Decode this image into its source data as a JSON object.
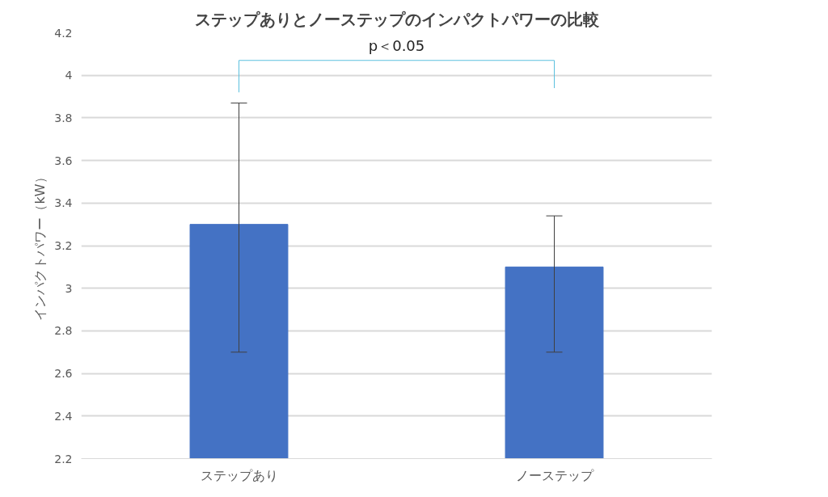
{
  "chart_data": {
    "type": "bar",
    "title": "ステップありとノーステップのインパクトパワーの比較",
    "ylabel": "インパクトパワー（kW）",
    "categories": [
      "ステップあり",
      "ノーステップ"
    ],
    "values": [
      3.3,
      3.1
    ],
    "color": "#4472c4",
    "errors": [
      [
        2.7,
        3.87
      ],
      [
        2.7,
        3.34
      ]
    ],
    "ylim": [
      2.2,
      4.2
    ],
    "yticks": [
      2.2,
      2.4,
      2.6,
      2.8,
      3,
      3.2,
      3.4,
      3.6,
      3.8,
      4,
      4.2
    ],
    "grid": "y",
    "annotations": [
      "p＜0.05"
    ]
  }
}
